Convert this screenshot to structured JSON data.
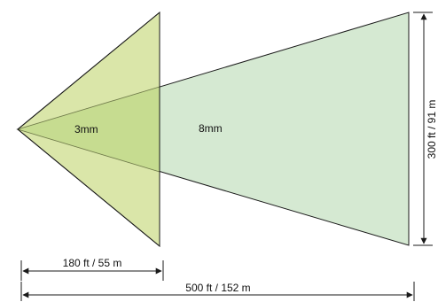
{
  "diagram": {
    "labels": {
      "narrow_lens": "3mm",
      "wide_lens": "8mm",
      "short_distance": "180 ft / 55 m",
      "long_distance": "500 ft / 152 m",
      "coverage_width": "300 ft / 91 m"
    },
    "colors": {
      "narrow_fill": "#d4e29a",
      "wide_fill": "#d5e9d2",
      "overlap_fill": "#c9de93",
      "stroke": "#1a1a1a"
    }
  }
}
